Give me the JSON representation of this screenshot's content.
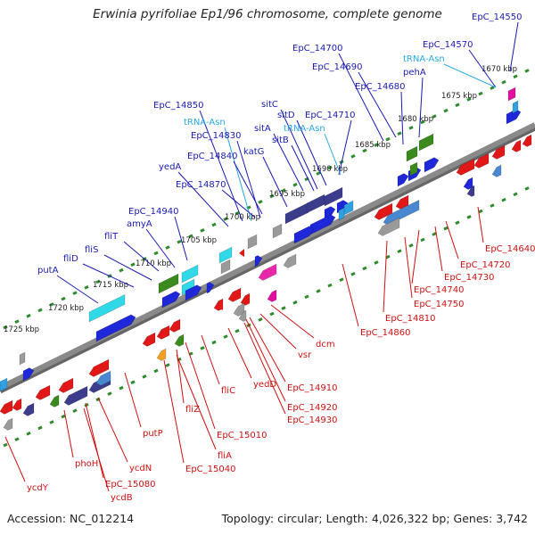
{
  "title": "Erwinia pyrifoliae Ep1/96 chromosome, complete genome",
  "footer": {
    "accession": "Accession: NC_012214",
    "topology": "Topology: circular; Length: 4,026,322 bp; Genes: 3,742"
  },
  "colors": {
    "upper_label": "#1a1ab4",
    "trna_label": "#2aa8e0",
    "lower_label": "#d01010",
    "backbone": "#8a8a8a",
    "tick": "#2e8b2e"
  },
  "kbp_labels": [
    "1670 kbp",
    "1675 kbp",
    "1680 kbp",
    "1685 kbp",
    "1690 kbp",
    "1695 kbp",
    "1700 kbp",
    "1705 kbp",
    "1710 kbp",
    "1715 kbp",
    "1720 kbp",
    "1725 kbp"
  ],
  "upper_labels": [
    "EpC_14550",
    "EpC_14570",
    "tRNA-Asn",
    "EpC_14700",
    "EpC_14690",
    "pehA",
    "EpC_14680",
    "EpC_14710",
    "sitC",
    "sitD",
    "tRNA-Asn",
    "sitA",
    "sitB",
    "EpC_14850",
    "tRNA-Asn",
    "EpC_14830",
    "katG",
    "EpC_14840",
    "yedA",
    "EpC_14870",
    "EpC_14940",
    "amyA",
    "fliT",
    "fliS",
    "fliD",
    "putA"
  ],
  "lower_labels": [
    "EpC_14640",
    "EpC_14720",
    "EpC_14730",
    "EpC_14740",
    "EpC_14750",
    "EpC_14810",
    "EpC_14860",
    "dcm",
    "vsr",
    "EpC_14910",
    "EpC_14920",
    "EpC_14930",
    "yedD",
    "fliC",
    "EpC_15010",
    "fliZ",
    "fliA",
    "EpC_15040",
    "putP",
    "phoH",
    "ycdN",
    "EpC_15080",
    "ycdB",
    "ycdY"
  ]
}
